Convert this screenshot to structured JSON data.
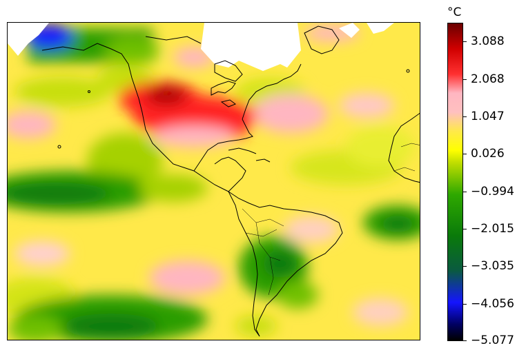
{
  "colorbar": {
    "unit": "°C",
    "range": [
      -5.077,
      3.6
    ],
    "ticks": [
      "3.088",
      "2.068",
      "1.047",
      "0.026",
      "−0.994",
      "−2.015",
      "−3.035",
      "−4.056",
      "−5.077"
    ],
    "tick_values": [
      3.088,
      2.068,
      1.047,
      0.026,
      -0.994,
      -2.015,
      -3.035,
      -4.056,
      -5.077
    ],
    "colormap": [
      "#000000",
      "#1414ff",
      "#0a7a0a",
      "#2ea800",
      "#ffff00",
      "#ffe94a",
      "#ffb6c1",
      "#ff2020",
      "#7a0000"
    ]
  },
  "map": {
    "type": "filled-contour temperature anomaly map",
    "region": "Americas, Atlantic and eastern Pacific",
    "notable_features": [
      "warm anomaly over western/central North America",
      "cool anomalies in eastern tropical Pacific",
      "cool anomaly over southern South America"
    ]
  }
}
